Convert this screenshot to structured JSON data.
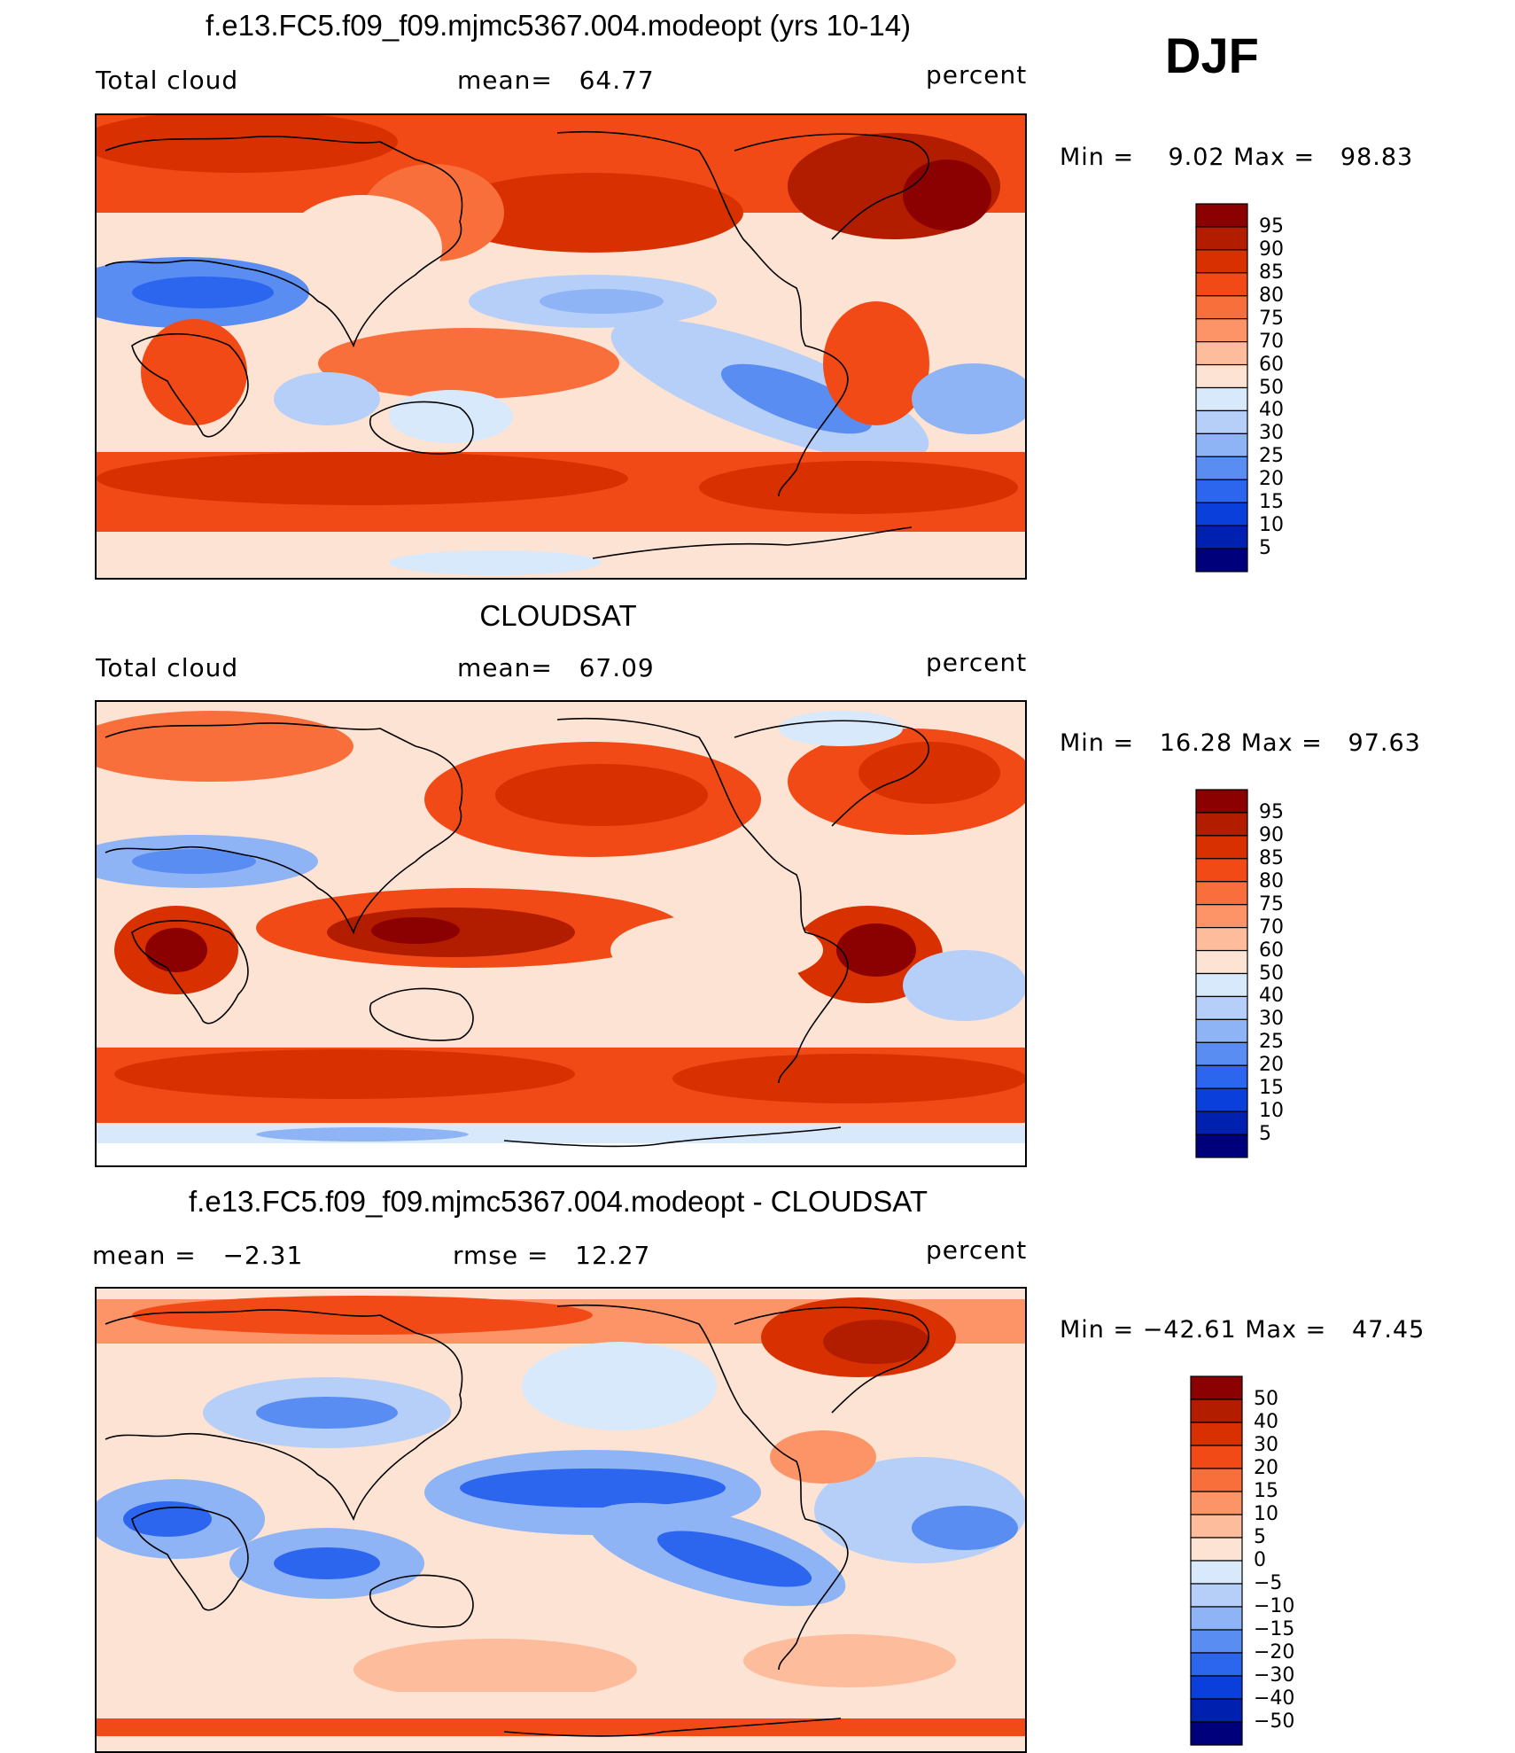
{
  "season": "DJF",
  "panels": [
    {
      "title": "f.e13.FC5.f09_f09.mjmc5367.004.modeopt (yrs 10-14)",
      "left_label": "Total cloud",
      "center_label": "mean=   64.77",
      "right_label": "percent",
      "minmax": "Min =    9.02 Max =   98.83",
      "colorbar": "abs"
    },
    {
      "title": "CLOUDSAT",
      "left_label": "Total cloud",
      "center_label": "mean=   67.09",
      "right_label": "percent",
      "minmax": "Min =   16.28 Max =   97.63",
      "colorbar": "abs"
    },
    {
      "title": "f.e13.FC5.f09_f09.mjmc5367.004.modeopt - CLOUDSAT",
      "left_label": "mean =   −2.31",
      "center_label": "rmse =   12.27",
      "right_label": "percent",
      "minmax": "Min = −42.61 Max =   47.45",
      "colorbar": "diff"
    }
  ],
  "colorbars": {
    "abs": {
      "labels": [
        "95",
        "90",
        "85",
        "80",
        "75",
        "70",
        "60",
        "50",
        "40",
        "30",
        "25",
        "20",
        "15",
        "10",
        "5"
      ],
      "colors": [
        "#8b0000",
        "#b21d00",
        "#d93000",
        "#f24a16",
        "#f96f3b",
        "#fc9467",
        "#fdbc9b",
        "#fde3d3",
        "#d7e9fb",
        "#b5cff8",
        "#8eb4f5",
        "#5a8df2",
        "#2d66ee",
        "#0b3fdc",
        "#0020b0",
        "#00007a"
      ]
    },
    "diff": {
      "labels": [
        "50",
        "40",
        "30",
        "20",
        "15",
        "10",
        "5",
        "0",
        "−5",
        "−10",
        "−15",
        "−20",
        "−30",
        "−40",
        "−50"
      ],
      "colors": [
        "#8b0000",
        "#b21d00",
        "#d93000",
        "#f24a16",
        "#f96f3b",
        "#fc9467",
        "#fdbc9b",
        "#fde3d3",
        "#d7e9fb",
        "#b5cff8",
        "#8eb4f5",
        "#5a8df2",
        "#2d66ee",
        "#0b3fdc",
        "#0020b0",
        "#00007a"
      ]
    }
  }
}
